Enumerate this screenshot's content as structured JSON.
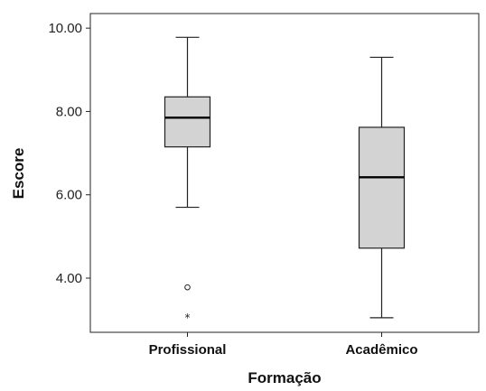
{
  "chart_data": {
    "type": "box",
    "xlabel": "Formação",
    "ylabel": "Escore",
    "ylim": [
      2.7,
      10.35
    ],
    "yticks": [
      4,
      6,
      8,
      10
    ],
    "ytick_labels": [
      "4.00",
      "6.00",
      "8.00",
      "10.00"
    ],
    "grid": false,
    "categories": [
      "Profissional",
      "Acadêmico"
    ],
    "boxes": [
      {
        "category": "Profissional",
        "whisker_low": 5.7,
        "q1": 7.15,
        "median": 7.85,
        "q3": 8.35,
        "whisker_high": 9.78,
        "outliers": [
          {
            "value": 3.78,
            "kind": "mild"
          }
        ],
        "extremes": [
          {
            "value": 3.05,
            "kind": "extreme"
          }
        ]
      },
      {
        "category": "Acadêmico",
        "whisker_low": 3.05,
        "q1": 4.72,
        "median": 6.42,
        "q3": 7.62,
        "whisker_high": 9.3,
        "outliers": [],
        "extremes": []
      }
    ],
    "colors": {
      "box_fill": "#d3d3d3",
      "line": "#222222"
    }
  }
}
